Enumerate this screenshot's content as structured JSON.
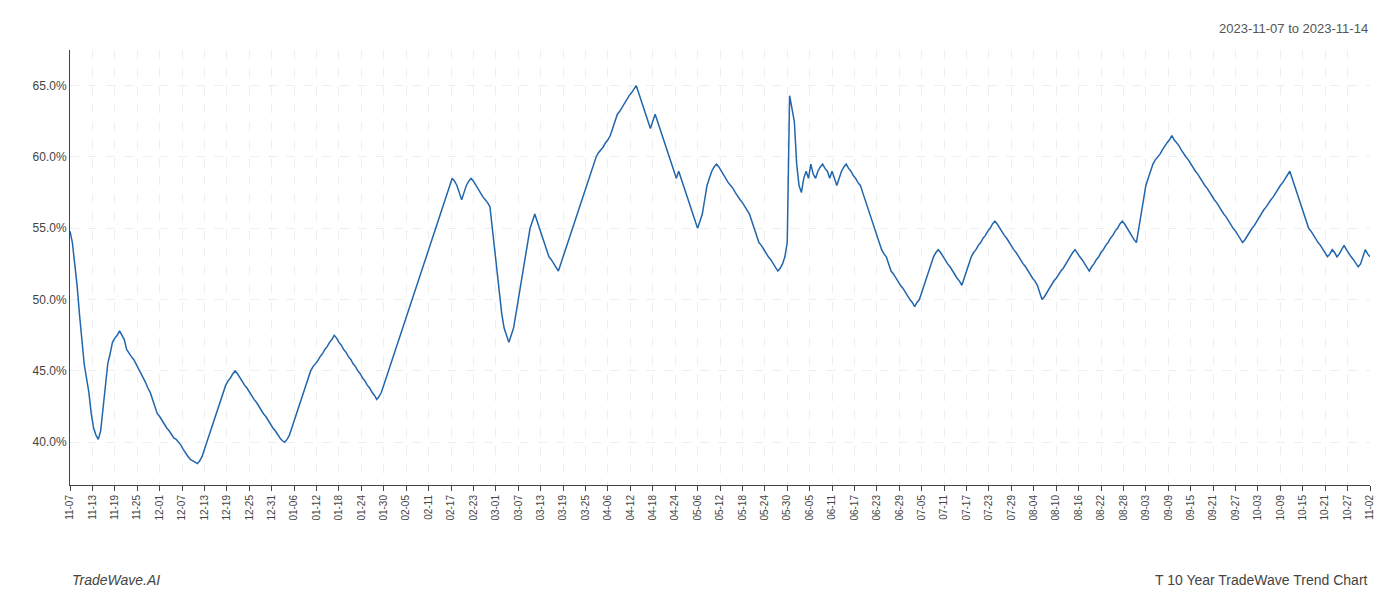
{
  "chart_data": {
    "type": "line",
    "title": "T 10 Year TradeWave Trend Chart",
    "subtitle": "2023-11-07 to 2023-11-14",
    "annotations": [
      "TradeWave.AI"
    ],
    "color": "#2166ac",
    "grid": true,
    "xlim": [
      0,
      551
    ],
    "xticks": [
      {
        "value": 0,
        "label": "11-07"
      },
      {
        "value": 9.5,
        "label": "11-13"
      },
      {
        "value": 19,
        "label": "11-19"
      },
      {
        "value": 28.5,
        "label": "11-25"
      },
      {
        "value": 38,
        "label": "12-01"
      },
      {
        "value": 47.5,
        "label": "12-07"
      },
      {
        "value": 57,
        "label": "12-13"
      },
      {
        "value": 66.5,
        "label": "12-19"
      },
      {
        "value": 76,
        "label": "12-25"
      },
      {
        "value": 85.5,
        "label": "12-31"
      },
      {
        "value": 95,
        "label": "01-06"
      },
      {
        "value": 104.5,
        "label": "01-12"
      },
      {
        "value": 114,
        "label": "01-18"
      },
      {
        "value": 123.5,
        "label": "01-24"
      },
      {
        "value": 133,
        "label": "01-30"
      },
      {
        "value": 142.5,
        "label": "02-05"
      },
      {
        "value": 152,
        "label": "02-11"
      },
      {
        "value": 161.5,
        "label": "02-17"
      },
      {
        "value": 171,
        "label": "02-23"
      },
      {
        "value": 180.5,
        "label": "03-01"
      },
      {
        "value": 190,
        "label": "03-07"
      },
      {
        "value": 199.5,
        "label": "03-13"
      },
      {
        "value": 209,
        "label": "03-19"
      },
      {
        "value": 218.5,
        "label": "03-25"
      },
      {
        "value": 228,
        "label": "04-06"
      },
      {
        "value": 237.5,
        "label": "04-12"
      },
      {
        "value": 247,
        "label": "04-18"
      },
      {
        "value": 256.5,
        "label": "04-24"
      },
      {
        "value": 266,
        "label": "05-06"
      },
      {
        "value": 275.5,
        "label": "05-12"
      },
      {
        "value": 285,
        "label": "05-18"
      },
      {
        "value": 294.5,
        "label": "05-24"
      },
      {
        "value": 304,
        "label": "05-30"
      },
      {
        "value": 313.5,
        "label": "06-05"
      },
      {
        "value": 323,
        "label": "06-11"
      },
      {
        "value": 332.5,
        "label": "06-17"
      },
      {
        "value": 342,
        "label": "06-23"
      },
      {
        "value": 351.5,
        "label": "06-29"
      },
      {
        "value": 361,
        "label": "07-05"
      },
      {
        "value": 370.5,
        "label": "07-11"
      },
      {
        "value": 380,
        "label": "07-17"
      },
      {
        "value": 389.5,
        "label": "07-23"
      },
      {
        "value": 399,
        "label": "07-29"
      },
      {
        "value": 408.5,
        "label": "08-04"
      },
      {
        "value": 418,
        "label": "08-10"
      },
      {
        "value": 427.5,
        "label": "08-16"
      },
      {
        "value": 437,
        "label": "08-22"
      },
      {
        "value": 446.5,
        "label": "08-28"
      },
      {
        "value": 456,
        "label": "09-03"
      },
      {
        "value": 465.5,
        "label": "09-09"
      },
      {
        "value": 475,
        "label": "09-15"
      },
      {
        "value": 484.5,
        "label": "09-21"
      },
      {
        "value": 494,
        "label": "09-27"
      },
      {
        "value": 503.5,
        "label": "10-03"
      },
      {
        "value": 513,
        "label": "10-09"
      },
      {
        "value": 522.5,
        "label": "10-15"
      },
      {
        "value": 532,
        "label": "10-21"
      },
      {
        "value": 541.5,
        "label": "10-27"
      },
      {
        "value": 551,
        "label": "11-02"
      }
    ],
    "ylim": [
      37.0,
      67.5
    ],
    "yticks": [
      {
        "value": 40.0,
        "label": "40.0%"
      },
      {
        "value": 45.0,
        "label": "45.0%"
      },
      {
        "value": 50.0,
        "label": "50.0%"
      },
      {
        "value": 55.0,
        "label": "55.0%"
      },
      {
        "value": 60.0,
        "label": "60.0%"
      },
      {
        "value": 65.0,
        "label": "65.0%"
      }
    ],
    "values": [
      54.8,
      54.0,
      52.5,
      51.0,
      49.0,
      47.0,
      45.5,
      44.5,
      43.5,
      42.0,
      41.0,
      40.5,
      40.2,
      40.8,
      42.5,
      44.0,
      45.5,
      46.2,
      47.0,
      47.3,
      47.5,
      47.8,
      47.5,
      47.2,
      46.5,
      46.2,
      46.0,
      45.8,
      45.5,
      45.2,
      44.8,
      44.5,
      44.2,
      43.8,
      43.5,
      43.0,
      42.5,
      42.0,
      41.8,
      41.5,
      41.2,
      41.0,
      40.8,
      40.5,
      40.3,
      40.2,
      40.0,
      39.8,
      39.5,
      39.2,
      39.0,
      38.8,
      38.7,
      38.6,
      38.5,
      38.7,
      39.0,
      39.5,
      40.0,
      40.5,
      41.0,
      41.5,
      42.0,
      42.5,
      43.0,
      43.5,
      44.0,
      44.3,
      44.5,
      44.8,
      45.0,
      44.8,
      44.5,
      44.3,
      44.0,
      43.8,
      43.5,
      43.2,
      43.0,
      42.8,
      42.5,
      42.3,
      42.0,
      41.8,
      41.5,
      41.3,
      41.0,
      40.8,
      40.5,
      40.3,
      40.1,
      40.0,
      40.2,
      40.5,
      41.0,
      41.5,
      42.0,
      42.5,
      43.0,
      43.5,
      44.0,
      44.5,
      45.0,
      45.3,
      45.5,
      45.7,
      46.0,
      46.2,
      46.5,
      46.7,
      47.0,
      47.2,
      47.5,
      47.3,
      47.0,
      46.8,
      46.5,
      46.3,
      46.0,
      45.8,
      45.5,
      45.3,
      45.0,
      44.8,
      44.5,
      44.3,
      44.0,
      43.8,
      43.5,
      43.3,
      43.0,
      43.2,
      43.5,
      44.0,
      44.5,
      45.0,
      45.5,
      46.0,
      46.5,
      47.0,
      47.5,
      48.0,
      48.5,
      49.0,
      49.5,
      50.0,
      50.5,
      51.0,
      51.5,
      52.0,
      52.5,
      53.0,
      53.5,
      54.0,
      54.5,
      55.0,
      55.5,
      56.0,
      56.5,
      57.0,
      57.5,
      58.0,
      58.5,
      58.3,
      58.0,
      57.5,
      57.0,
      57.5,
      58.0,
      58.3,
      58.5,
      58.3,
      58.0,
      57.8,
      57.5,
      57.2,
      57.0,
      56.8,
      56.5,
      55.0,
      53.5,
      52.0,
      50.5,
      49.0,
      48.0,
      47.5,
      47.0,
      47.5,
      48.0,
      49.0,
      50.0,
      51.0,
      52.0,
      53.0,
      54.0,
      55.0,
      55.5,
      56.0,
      55.5,
      55.0,
      54.5,
      54.0,
      53.5,
      53.0,
      52.8,
      52.5,
      52.3,
      52.0,
      52.5,
      53.0,
      53.5,
      54.0,
      54.5,
      55.0,
      55.5,
      56.0,
      56.5,
      57.0,
      57.5,
      58.0,
      58.5,
      59.0,
      59.5,
      60.0,
      60.3,
      60.5,
      60.7,
      61.0,
      61.2,
      61.5,
      62.0,
      62.5,
      63.0,
      63.2,
      63.5,
      63.8,
      64.0,
      64.3,
      64.5,
      64.8,
      65.0,
      64.5,
      64.0,
      63.5,
      63.0,
      62.5,
      62.0,
      62.5,
      63.0,
      62.5,
      62.0,
      61.5,
      61.0,
      60.5,
      60.0,
      59.5,
      59.0,
      58.5,
      59.0,
      58.5,
      58.0,
      57.5,
      57.0,
      56.5,
      56.0,
      55.5,
      55.0,
      55.5,
      56.0,
      57.0,
      58.0,
      58.5,
      59.0,
      59.3,
      59.5,
      59.3,
      59.0,
      58.7,
      58.5,
      58.2,
      58.0,
      57.8,
      57.5,
      57.2,
      57.0,
      56.8,
      56.5,
      56.2,
      56.0,
      55.5,
      55.0,
      54.5,
      54.0,
      53.8,
      53.5,
      53.2,
      53.0,
      52.8,
      52.5,
      52.3,
      52.0,
      52.2,
      52.5,
      53.0,
      54.0,
      64.3,
      63.5,
      62.5,
      59.5,
      58.0,
      57.5,
      58.5,
      59.0,
      58.5,
      59.5,
      58.8,
      58.5,
      59.0,
      59.3,
      59.5,
      59.2,
      59.0,
      58.5,
      59.0,
      58.5,
      58.0,
      58.5,
      59.0,
      59.3,
      59.5,
      59.2,
      59.0,
      58.7,
      58.5,
      58.2,
      58.0,
      57.5,
      57.0,
      56.5,
      56.0,
      55.5,
      55.0,
      54.5,
      54.0,
      53.5,
      53.2,
      53.0,
      52.5,
      52.0,
      51.8,
      51.5,
      51.2,
      51.0,
      50.8,
      50.5,
      50.2,
      50.0,
      49.8,
      49.5,
      49.8,
      50.0,
      50.5,
      51.0,
      51.5,
      52.0,
      52.5,
      53.0,
      53.3,
      53.5,
      53.3,
      53.0,
      52.8,
      52.5,
      52.3,
      52.0,
      51.8,
      51.5,
      51.3,
      51.0,
      51.5,
      52.0,
      52.5,
      53.0,
      53.3,
      53.5,
      53.8,
      54.0,
      54.3,
      54.5,
      54.8,
      55.0,
      55.3,
      55.5,
      55.3,
      55.0,
      54.8,
      54.5,
      54.3,
      54.0,
      53.8,
      53.5,
      53.3,
      53.0,
      52.8,
      52.5,
      52.3,
      52.0,
      51.8,
      51.5,
      51.3,
      51.0,
      50.5,
      50.0,
      50.2,
      50.5,
      50.8,
      51.0,
      51.3,
      51.5,
      51.8,
      52.0,
      52.2,
      52.5,
      52.8,
      53.0,
      53.3,
      53.5,
      53.2,
      53.0,
      52.8,
      52.5,
      52.2,
      52.0,
      52.3,
      52.5,
      52.8,
      53.0,
      53.3,
      53.5,
      53.8,
      54.0,
      54.3,
      54.5,
      54.8,
      55.0,
      55.3,
      55.5,
      55.3,
      55.0,
      54.8,
      54.5,
      54.2,
      54.0,
      55.0,
      56.0,
      57.0,
      58.0,
      58.5,
      59.0,
      59.5,
      59.8,
      60.0,
      60.2,
      60.5,
      60.8,
      61.0,
      61.2,
      61.5,
      61.2,
      61.0,
      60.8,
      60.5,
      60.2,
      60.0,
      59.8,
      59.5,
      59.2,
      59.0,
      58.8,
      58.5,
      58.2,
      58.0,
      57.8,
      57.5,
      57.2,
      57.0,
      56.8,
      56.5,
      56.3,
      56.0,
      55.8,
      55.5,
      55.3,
      55.0,
      54.8,
      54.5,
      54.2,
      54.0,
      54.2,
      54.5,
      54.8,
      55.0,
      55.2,
      55.5,
      55.8,
      56.0,
      56.3,
      56.5,
      56.8,
      57.0,
      57.2,
      57.5,
      57.8,
      58.0,
      58.2,
      58.5,
      58.8,
      59.0,
      58.5,
      58.0,
      57.5,
      57.0,
      56.5,
      56.0,
      55.5,
      55.0,
      54.8,
      54.5,
      54.2,
      54.0,
      53.8,
      53.5,
      53.3,
      53.0,
      53.2,
      53.5,
      53.3,
      53.0,
      53.2,
      53.5,
      53.8,
      53.5,
      53.2,
      53.0,
      52.8,
      52.5,
      52.3,
      52.5,
      53.0,
      53.5,
      53.2,
      53.0
    ]
  }
}
